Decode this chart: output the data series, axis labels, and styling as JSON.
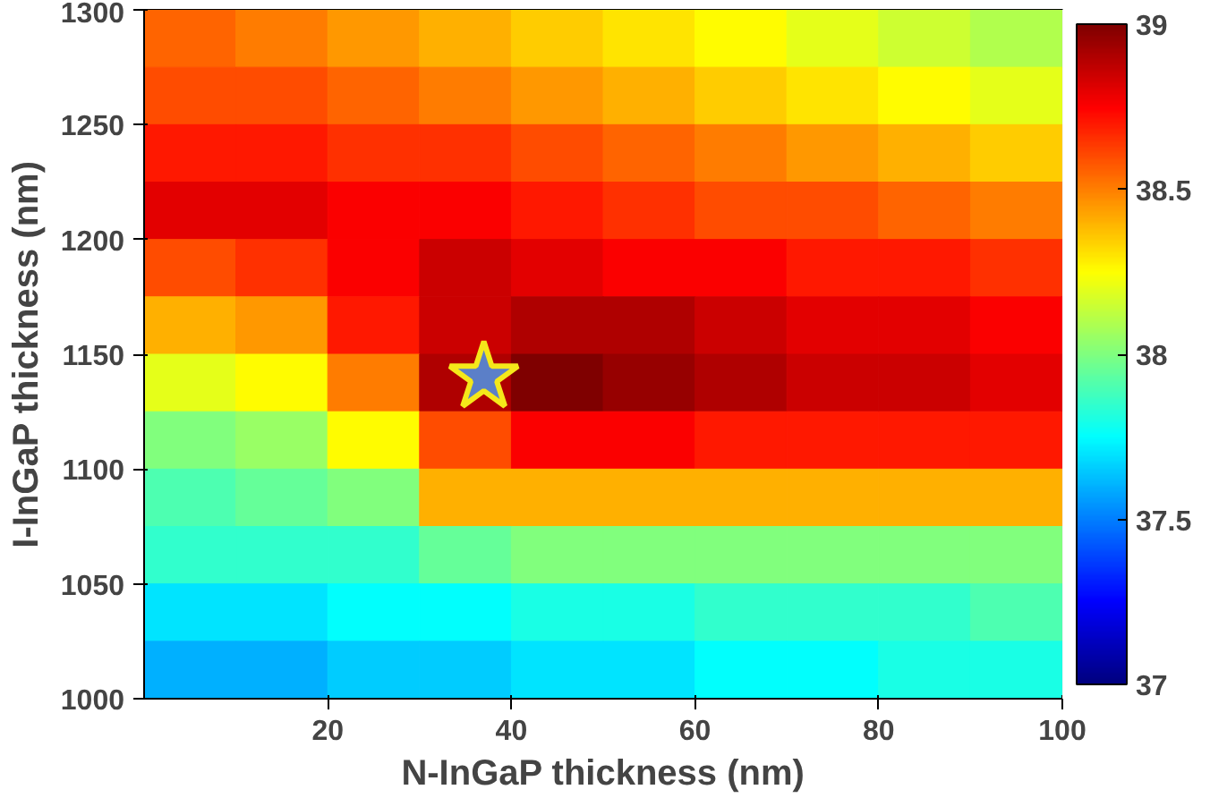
{
  "chart_data": {
    "type": "heatmap",
    "xlabel": "N-InGaP thickness (nm)",
    "ylabel": "I-InGaP thickness (nm)",
    "x": [
      5,
      15,
      25,
      35,
      45,
      55,
      65,
      75,
      85,
      95
    ],
    "y": [
      1287.5,
      1262.5,
      1237.5,
      1212.5,
      1187.5,
      1162.5,
      1137.5,
      1112.5,
      1087.5,
      1062.5,
      1037.5,
      1012.5
    ],
    "cells": [
      [
        38.55,
        38.5,
        38.45,
        38.4,
        38.35,
        38.3,
        38.25,
        38.2,
        38.15,
        38.1
      ],
      [
        38.6,
        38.6,
        38.55,
        38.5,
        38.45,
        38.4,
        38.35,
        38.3,
        38.25,
        38.2
      ],
      [
        38.7,
        38.7,
        38.65,
        38.65,
        38.6,
        38.55,
        38.5,
        38.45,
        38.4,
        38.35
      ],
      [
        38.8,
        38.8,
        38.75,
        38.75,
        38.7,
        38.65,
        38.6,
        38.6,
        38.55,
        38.5
      ],
      [
        38.6,
        38.65,
        38.75,
        38.85,
        38.8,
        38.75,
        38.75,
        38.7,
        38.7,
        38.65
      ],
      [
        38.4,
        38.45,
        38.7,
        38.85,
        38.9,
        38.9,
        38.85,
        38.8,
        38.8,
        38.75
      ],
      [
        38.2,
        38.25,
        38.5,
        38.9,
        39.0,
        38.95,
        38.9,
        38.85,
        38.85,
        38.8
      ],
      [
        38.0,
        38.05,
        38.25,
        38.6,
        38.75,
        38.75,
        38.7,
        38.7,
        38.7,
        38.7
      ],
      [
        37.9,
        37.95,
        38.0,
        38.4,
        38.4,
        38.4,
        38.4,
        38.4,
        38.4,
        38.4
      ],
      [
        37.85,
        37.85,
        37.85,
        37.95,
        38.0,
        38.0,
        38.0,
        38.0,
        38.0,
        38.0
      ],
      [
        37.7,
        37.7,
        37.75,
        37.75,
        37.8,
        37.8,
        37.85,
        37.85,
        37.85,
        37.9
      ],
      [
        37.6,
        37.6,
        37.65,
        37.65,
        37.7,
        37.7,
        37.75,
        37.75,
        37.8,
        37.8
      ]
    ],
    "series": [
      {
        "type": "scatter",
        "marker": "star",
        "color": "#5b7fc8",
        "x": [
          37
        ],
        "values": [
          1140
        ]
      }
    ],
    "xlim": [
      0,
      100
    ],
    "ylim": [
      1000,
      1300
    ],
    "xticks": [
      20,
      40,
      60,
      80,
      100
    ],
    "yticks": [
      1000,
      1050,
      1100,
      1150,
      1200,
      1250,
      1300
    ],
    "clim": [
      37,
      39
    ],
    "cticks": [
      37,
      37.5,
      38,
      38.5,
      39
    ]
  }
}
